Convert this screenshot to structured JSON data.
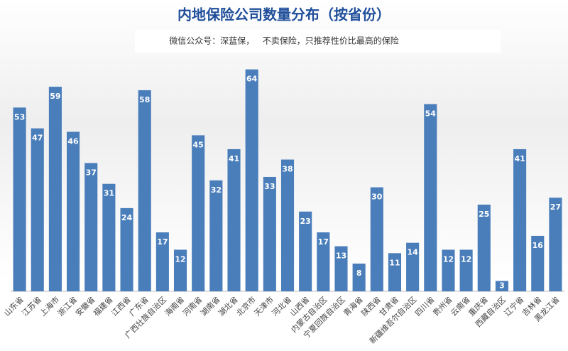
{
  "chart_data": {
    "type": "bar",
    "title": "内地保险公司数量分布（按省份）",
    "subtitle": "微信公众号：深蓝保，   不卖保险，只推荐性价比最高的保险",
    "categories": [
      "山东省",
      "江苏省",
      "上海市",
      "浙江省",
      "安徽省",
      "福建省",
      "江西省",
      "广东省",
      "广西壮族自治区",
      "海南省",
      "河南省",
      "湖南省",
      "湖北省",
      "北京市",
      "天津市",
      "河北省",
      "山西省",
      "内蒙古自治区",
      "宁夏回族自治区",
      "青海省",
      "陕西省",
      "甘肃省",
      "新疆维吾尔自治区",
      "四川省",
      "贵州省",
      "云南省",
      "重庆省",
      "西藏自治区",
      "辽宁省",
      "吉林省",
      "黑龙江省"
    ],
    "values": [
      53,
      47,
      59,
      46,
      37,
      31,
      24,
      58,
      17,
      12,
      45,
      32,
      41,
      64,
      33,
      38,
      23,
      17,
      13,
      8,
      30,
      11,
      14,
      54,
      12,
      12,
      25,
      3,
      41,
      16,
      27
    ],
    "color": "#4a7ebb"
  }
}
